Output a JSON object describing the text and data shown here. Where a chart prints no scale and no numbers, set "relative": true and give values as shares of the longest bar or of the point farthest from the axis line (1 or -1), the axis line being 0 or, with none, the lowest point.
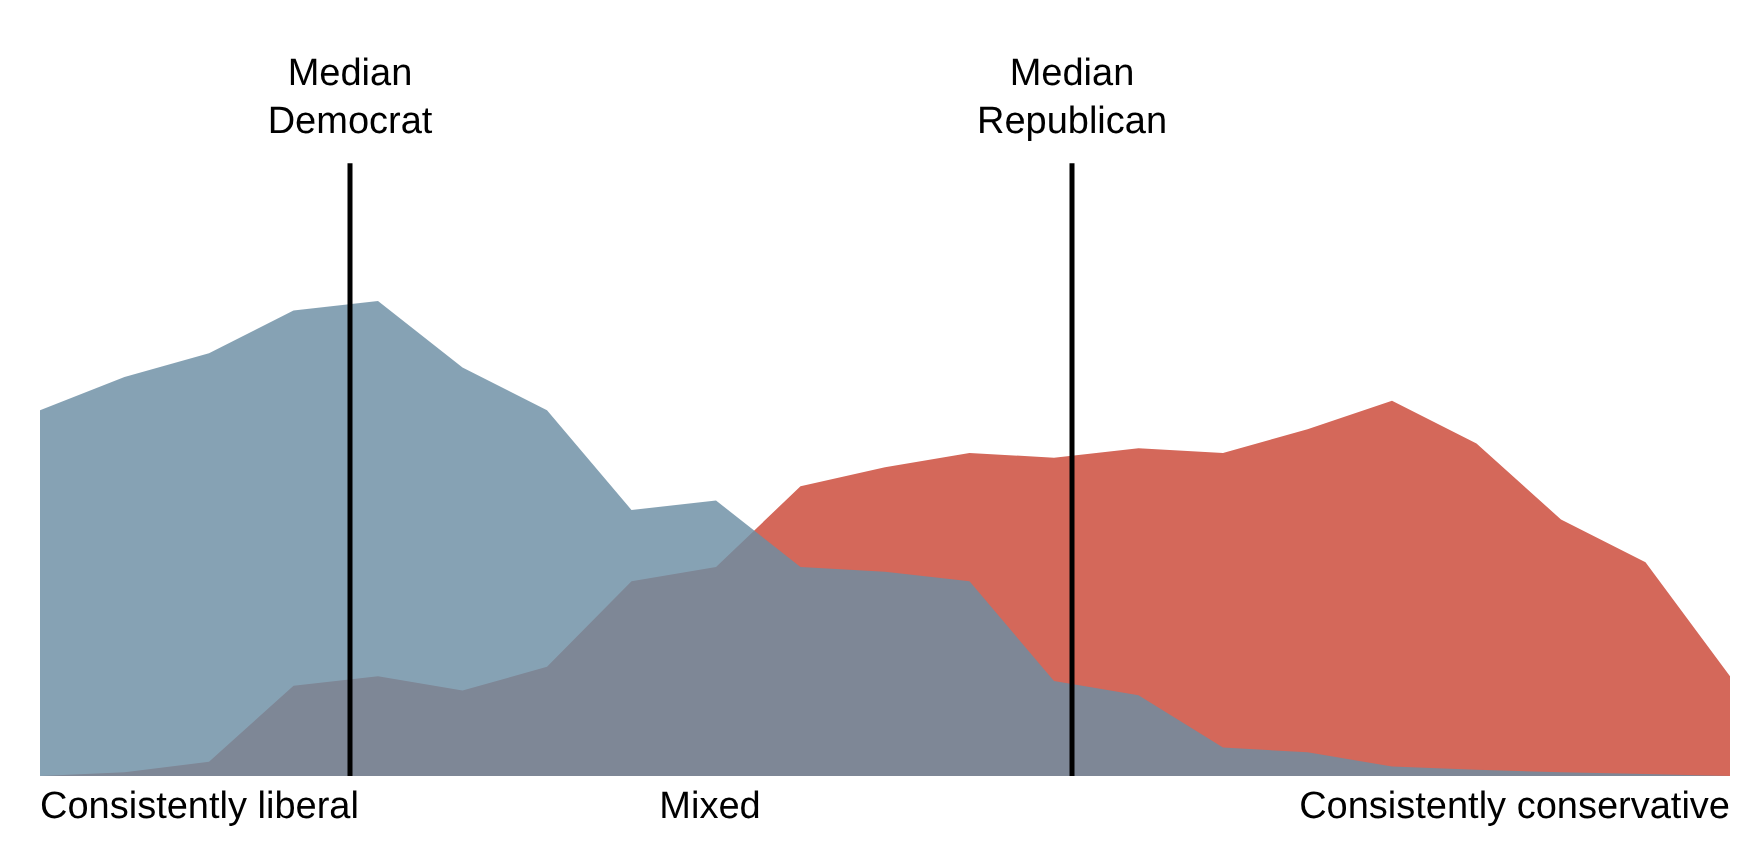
{
  "chart_data": {
    "type": "area",
    "relative": true,
    "categories": [
      null,
      null,
      null,
      null,
      null,
      null,
      null,
      null,
      null,
      null,
      null,
      null,
      null,
      null,
      null,
      null,
      null,
      null,
      null,
      null,
      null
    ],
    "series": [
      {
        "color": "#d4685a",
        "values": [
          0,
          0.008,
          0.03,
          0.19,
          0.21,
          0.18,
          0.23,
          0.41,
          0.44,
          0.61,
          0.65,
          0.68,
          0.67,
          0.69,
          0.68,
          0.73,
          0.79,
          0.7,
          0.54,
          0.45,
          0.21
        ]
      },
      {
        "color": "#6b8ea3",
        "values": [
          0.77,
          0.84,
          0.89,
          0.98,
          1,
          0.86,
          0.77,
          0.56,
          0.58,
          0.44,
          0.43,
          0.41,
          0.2,
          0.17,
          0.06,
          0.05,
          0.02,
          0.013,
          0.008,
          0.004,
          0
        ]
      }
    ],
    "annotations": [
      "Median Democrat",
      "Median Republican",
      "Consistently liberal",
      "Mixed",
      "Consistently conservative"
    ],
    "grid": false
  }
}
